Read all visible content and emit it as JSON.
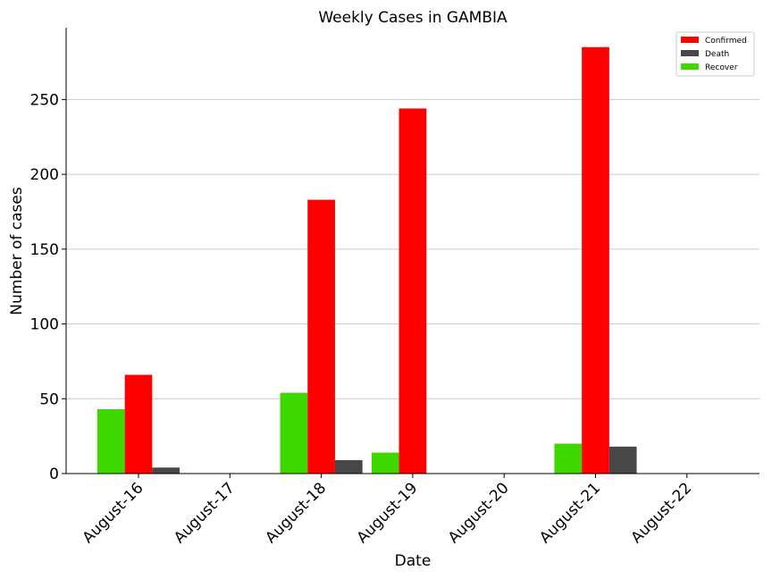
{
  "chart_data": {
    "type": "bar",
    "title": "Weekly Cases in GAMBIA",
    "xlabel": "Date",
    "ylabel": "Number of cases",
    "categories": [
      "August-16",
      "August-17",
      "August-18",
      "August-19",
      "August-20",
      "August-21",
      "August-22"
    ],
    "series": [
      {
        "name": "Recover",
        "color": "#3fd700",
        "values": [
          43,
          0,
          54,
          14,
          0,
          20,
          0
        ]
      },
      {
        "name": "Confirmed",
        "color": "#ff0000",
        "values": [
          66,
          0,
          183,
          244,
          0,
          285,
          0
        ]
      },
      {
        "name": "Death",
        "color": "#474747",
        "values": [
          4,
          0,
          9,
          0,
          0,
          18,
          0
        ]
      }
    ],
    "legend_order": [
      "Confirmed",
      "Death",
      "Recover"
    ],
    "yticks": [
      0,
      50,
      100,
      150,
      200,
      250
    ],
    "ylim": [
      0,
      298
    ],
    "grid": "horizontal",
    "legend_position": "top-right"
  }
}
